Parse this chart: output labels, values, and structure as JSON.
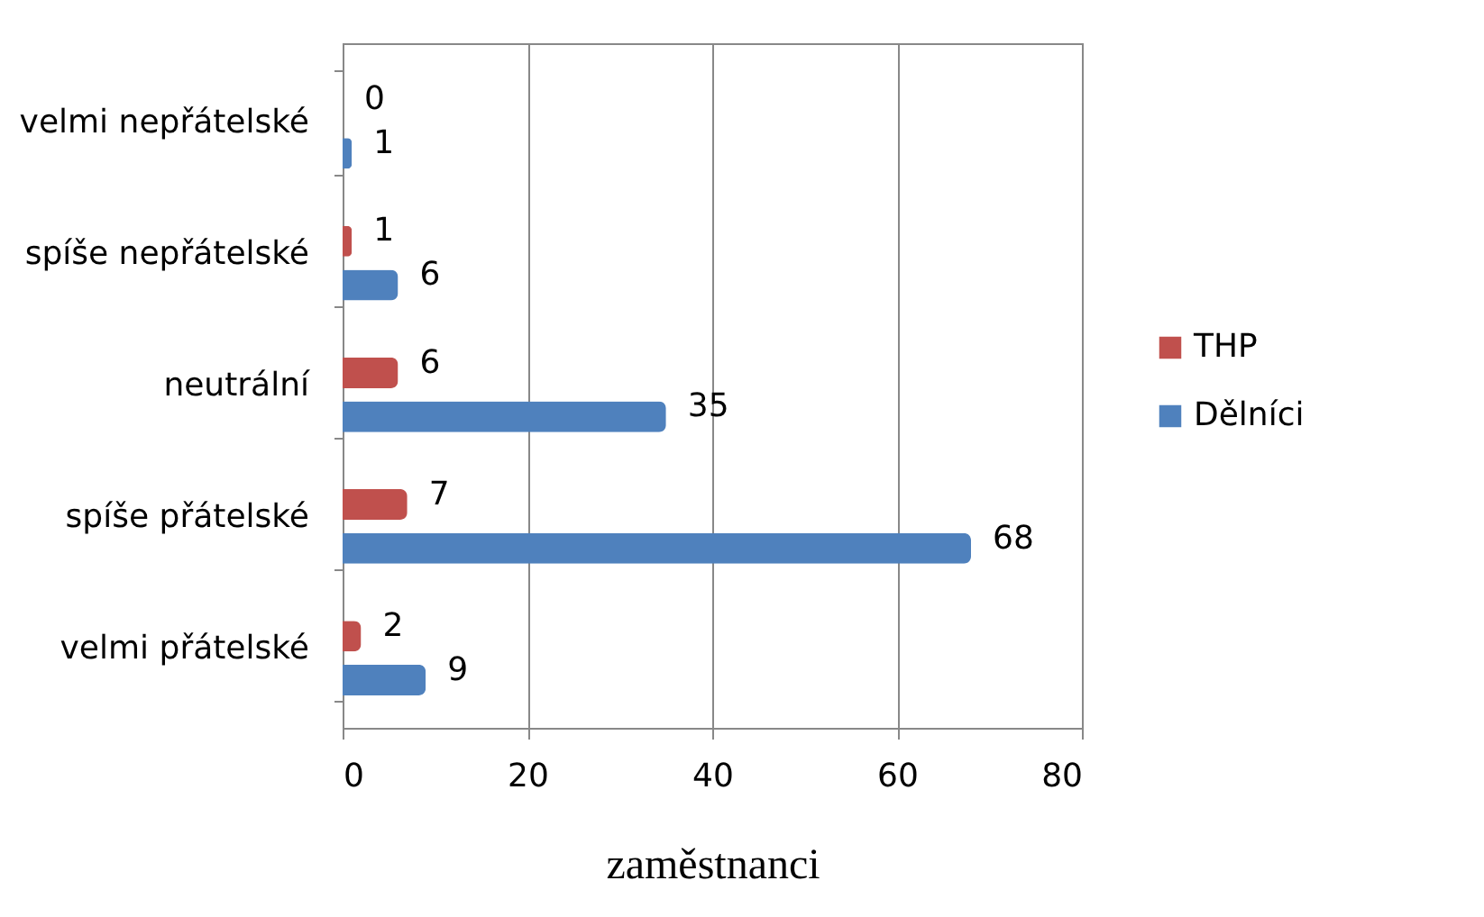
{
  "chart_data": {
    "type": "bar",
    "orientation": "horizontal",
    "categories": [
      "velmi nepřátelské",
      "spíše nepřátelské",
      "neutrální",
      "spíše přátelské",
      "velmi přátelské"
    ],
    "series": [
      {
        "name": "THP",
        "color": "#c0504d",
        "values": [
          0,
          1,
          6,
          7,
          2
        ]
      },
      {
        "name": "Dělníci",
        "color": "#4f81bd",
        "values": [
          1,
          6,
          35,
          68,
          9
        ]
      }
    ],
    "xlim": [
      0,
      80
    ],
    "xticks": [
      0,
      20,
      40,
      60,
      80
    ],
    "xlabel": "zaměstnanci",
    "grid": "x",
    "legend": "right",
    "data_labels": true
  }
}
